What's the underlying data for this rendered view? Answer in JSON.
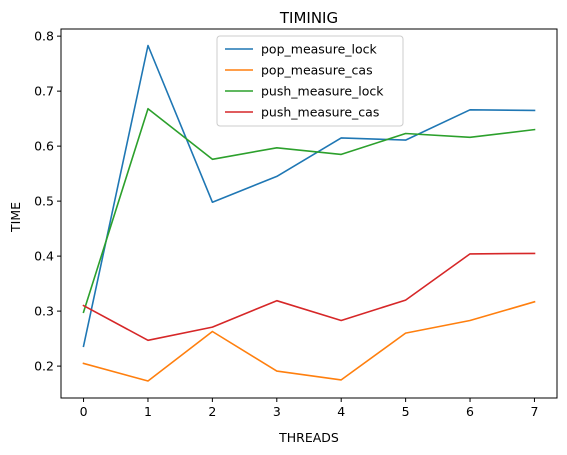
{
  "chart_data": {
    "type": "line",
    "title": "TIMINIG",
    "xlabel": "THREADS",
    "ylabel": "TIME",
    "x": [
      0,
      1,
      2,
      3,
      4,
      5,
      6,
      7
    ],
    "xticks": [
      "0",
      "1",
      "2",
      "3",
      "4",
      "5",
      "6",
      "7"
    ],
    "yticks": [
      "0.2",
      "0.3",
      "0.4",
      "0.5",
      "0.6",
      "0.7",
      "0.8"
    ],
    "xlim": [
      -0.35,
      7.35
    ],
    "ylim": [
      0.142,
      0.813
    ],
    "grid": false,
    "legend_position": "upper-center",
    "series": [
      {
        "name": "pop_measure_lock",
        "color": "#1f77b4",
        "values": [
          0.236,
          0.783,
          0.498,
          0.545,
          0.615,
          0.611,
          0.666,
          0.665
        ]
      },
      {
        "name": "pop_measure_cas",
        "color": "#ff7f0e",
        "values": [
          0.205,
          0.173,
          0.263,
          0.191,
          0.175,
          0.26,
          0.283,
          0.317
        ]
      },
      {
        "name": "push_measure_lock",
        "color": "#2ca02c",
        "values": [
          0.298,
          0.668,
          0.576,
          0.597,
          0.585,
          0.623,
          0.616,
          0.63
        ]
      },
      {
        "name": "push_measure_cas",
        "color": "#d62728",
        "values": [
          0.31,
          0.247,
          0.271,
          0.319,
          0.283,
          0.32,
          0.404,
          0.405
        ]
      }
    ]
  }
}
